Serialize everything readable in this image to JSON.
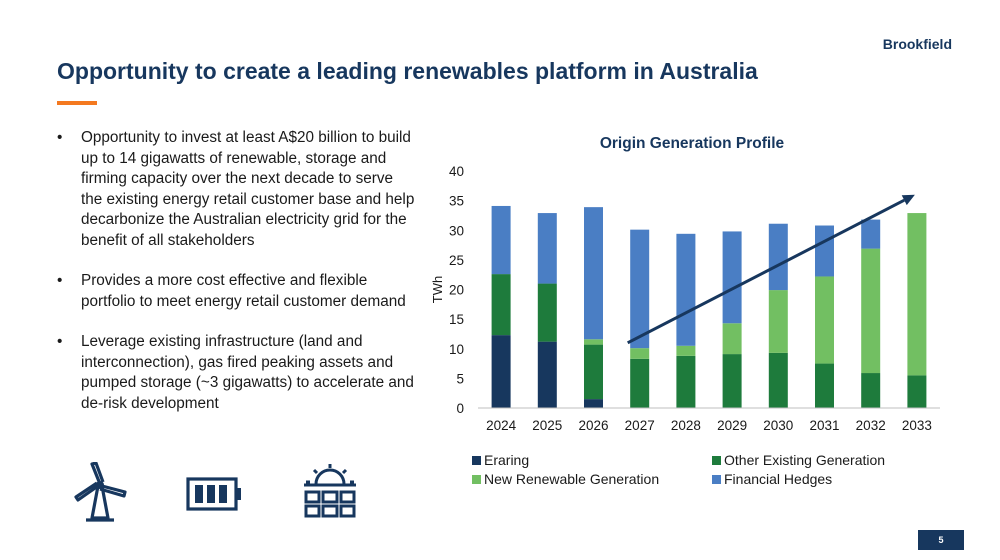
{
  "header": {
    "brand": "Brookfield",
    "title": "Opportunity to create a leading renewables platform in Australia"
  },
  "bullets": [
    "Opportunity to invest at least A$20 billion to build up to 14 gigawatts of renewable, storage and firming capacity over the next decade to serve the existing energy retail customer base and help decarbonize the Australian electricity grid for the benefit of all stakeholders",
    "Provides a more cost effective and flexible portfolio to meet energy retail customer demand",
    "Leverage existing infrastructure (land and interconnection), gas fired peaking assets and pumped storage (~3 gigawatts) to accelerate and de-risk development"
  ],
  "bullet_symbol": "•",
  "icons": [
    "wind-turbine-icon",
    "battery-icon",
    "solar-panel-icon"
  ],
  "colors": {
    "navy": "#17375e",
    "orange": "#f47920",
    "eraring": "#17375e",
    "other_existing": "#1e7b3c",
    "new_renewable": "#72bf62",
    "financial_hedges": "#4a7ec4"
  },
  "chart_data": {
    "type": "bar",
    "stacked": true,
    "title": "Origin Generation Profile",
    "xlabel": "",
    "ylabel": "TWh",
    "ylim": [
      0,
      40
    ],
    "yticks": [
      0,
      5,
      10,
      15,
      20,
      25,
      30,
      35,
      40
    ],
    "categories": [
      "2024",
      "2025",
      "2026",
      "2027",
      "2028",
      "2029",
      "2030",
      "2031",
      "2032",
      "2033"
    ],
    "series": [
      {
        "name": "Eraring",
        "color": "#17375e",
        "values": [
          12.3,
          11.2,
          1.5,
          0,
          0,
          0,
          0,
          0,
          0,
          0
        ]
      },
      {
        "name": "Other Existing Generation",
        "color": "#1e7b3c",
        "values": [
          10.3,
          9.8,
          9.2,
          8.3,
          8.8,
          9.1,
          9.3,
          7.5,
          5.9,
          5.5
        ]
      },
      {
        "name": "New Renewable Generation",
        "color": "#72bf62",
        "values": [
          0,
          0,
          0.9,
          1.8,
          1.7,
          5.2,
          10.6,
          14.7,
          21.0,
          27.4
        ]
      },
      {
        "name": "Financial Hedges",
        "color": "#4a7ec4",
        "values": [
          11.5,
          11.9,
          22.3,
          20.0,
          18.9,
          15.5,
          11.2,
          8.6,
          4.9,
          0
        ]
      }
    ],
    "legend": {
      "placement": "bottom",
      "order": [
        "Eraring",
        "Other Existing Generation",
        "New Renewable Generation",
        "Financial Hedges"
      ]
    },
    "annotations": [
      {
        "type": "trend-arrow",
        "from": {
          "x": "2027",
          "y": 11
        },
        "to": {
          "x": "2033",
          "y": 36
        },
        "color": "#17375e"
      }
    ]
  },
  "footer": {
    "page_number": "5"
  }
}
